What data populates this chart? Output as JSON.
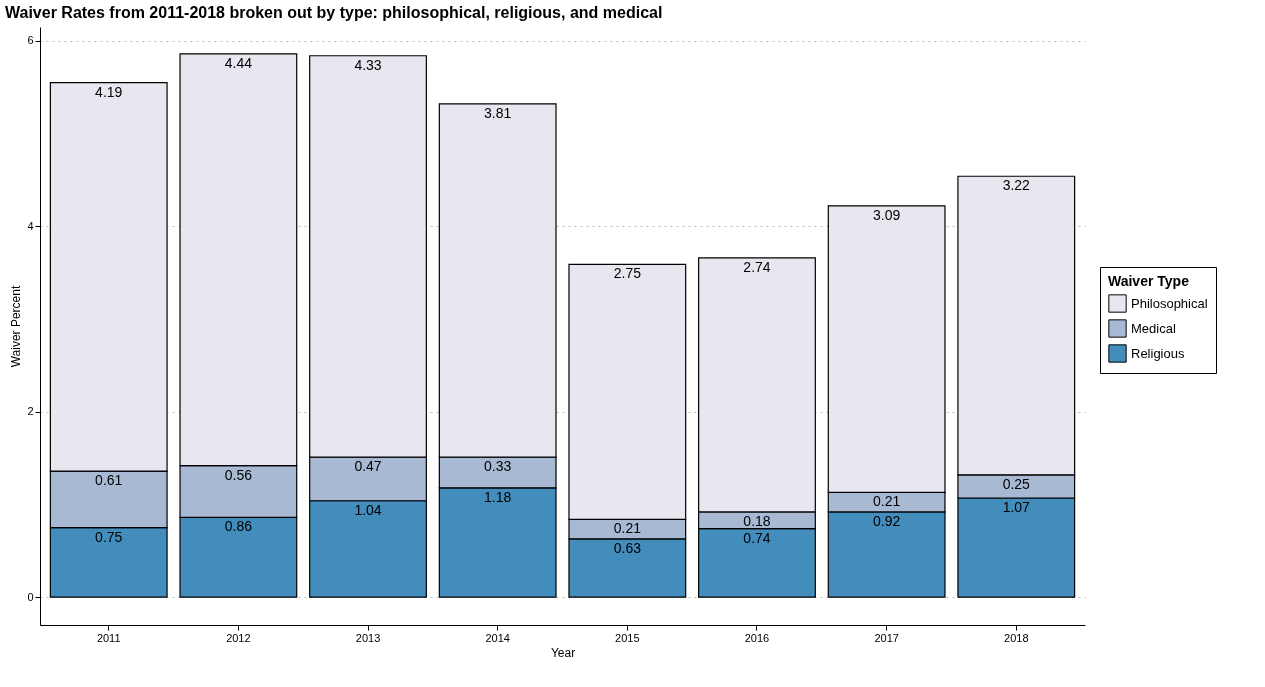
{
  "chart_data": {
    "type": "bar",
    "title": "Waiver Rates from 2011-2018 broken out by type: philosophical, religious, and medical",
    "xlabel": "Year",
    "ylabel": "Waiver Percent",
    "legend_title": "Waiver Type",
    "categories": [
      "2011",
      "2012",
      "2013",
      "2014",
      "2015",
      "2016",
      "2017",
      "2018"
    ],
    "stacked": true,
    "data_labels": true,
    "grid": "y",
    "legend": "right",
    "ylim": [
      -0.3,
      6.15
    ],
    "yticks": [
      0,
      2,
      4,
      6
    ],
    "series": [
      {
        "name": "Religious",
        "color": "#428dbb",
        "values": [
          0.75,
          0.86,
          1.04,
          1.18,
          0.63,
          0.74,
          0.92,
          1.07
        ]
      },
      {
        "name": "Medical",
        "color": "#a8b9d4",
        "values": [
          0.61,
          0.56,
          0.47,
          0.33,
          0.21,
          0.18,
          0.21,
          0.25
        ]
      },
      {
        "name": "Philosophical",
        "color": "#e8e6ee",
        "values": [
          4.19,
          4.44,
          4.33,
          3.81,
          2.75,
          2.74,
          3.09,
          3.22
        ]
      }
    ]
  }
}
